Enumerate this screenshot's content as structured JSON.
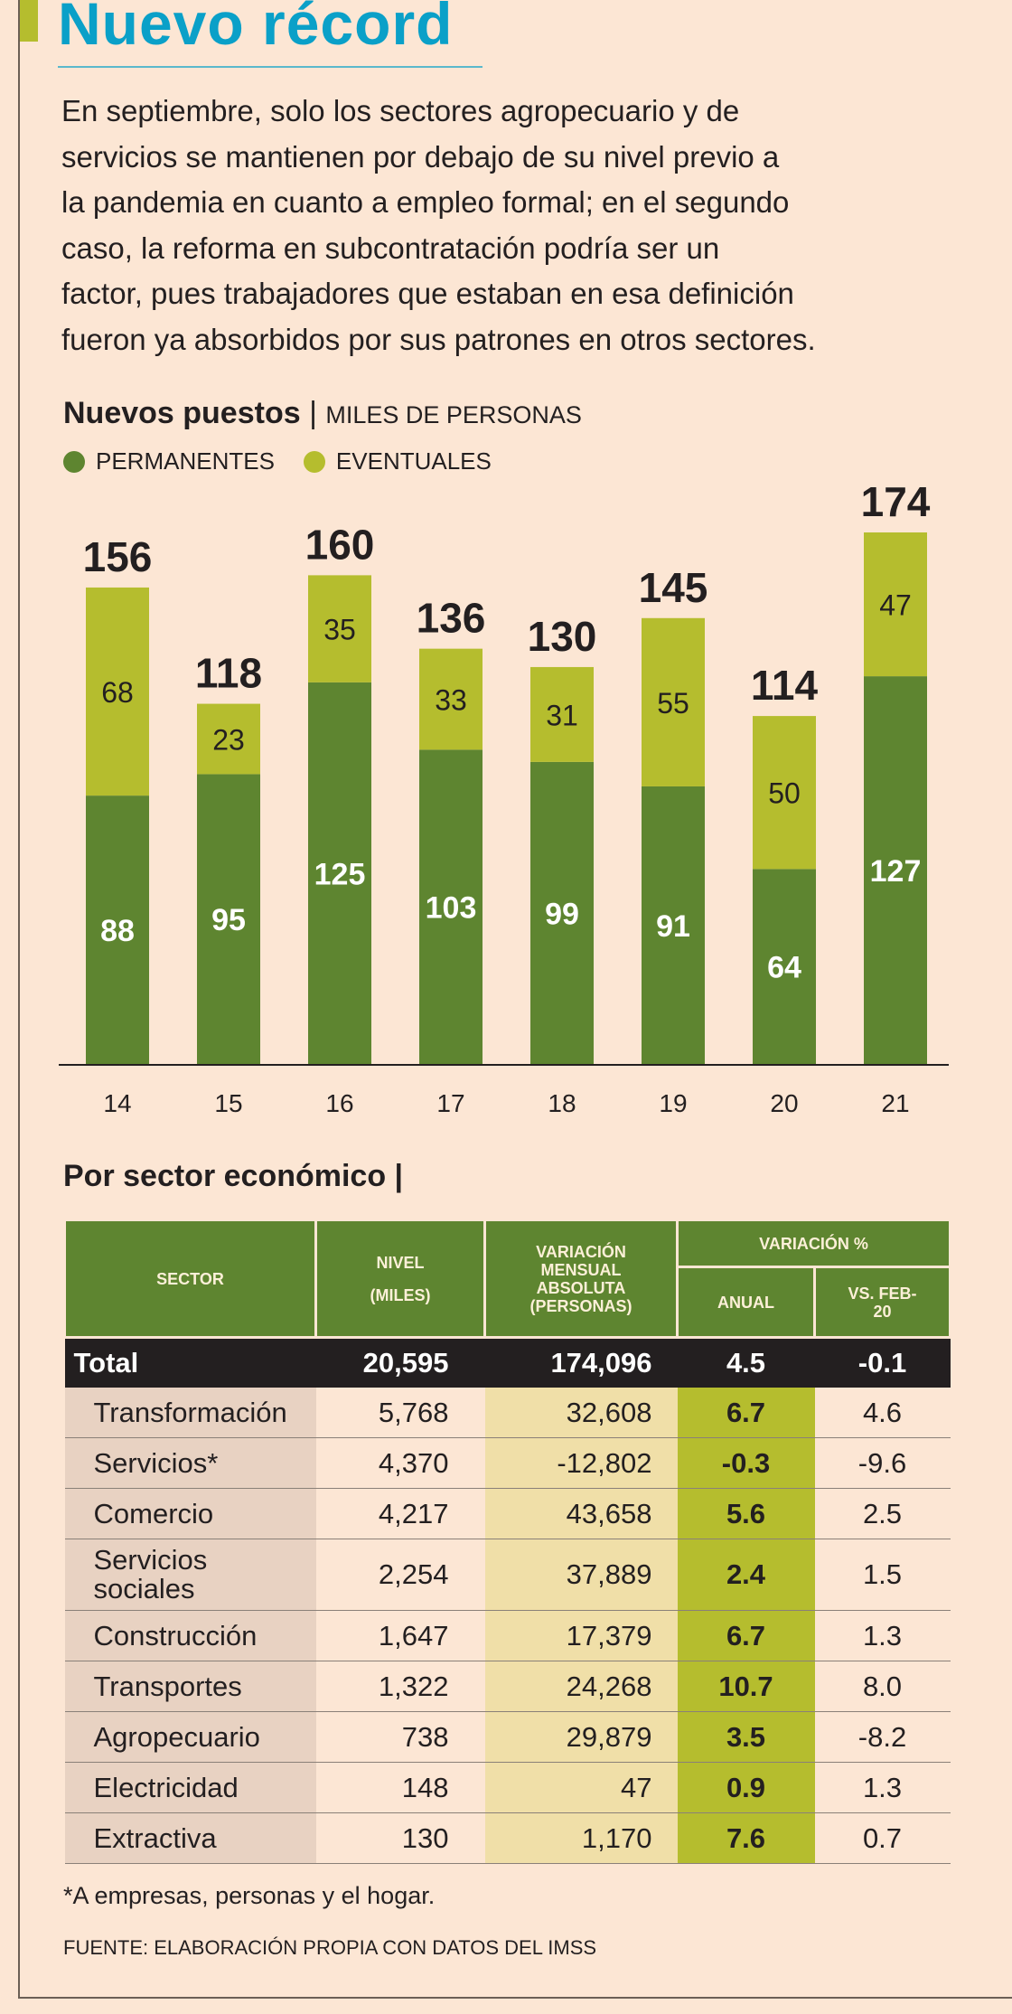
{
  "header": {
    "title": "Nuevo récord"
  },
  "intro_lines": [
    "En septiembre, solo los sectores agropecuario y de",
    "servicios se mantienen por debajo de su nivel previo a",
    "la pandemia en cuanto a empleo formal; en el segundo",
    "caso, la reforma en subcontratación podría ser un",
    "factor, pues trabajadores que estaban en esa definición",
    "fueron ya absorbidos por sus patrones en otros sectores."
  ],
  "chart_data": {
    "type": "bar",
    "stacked": true,
    "title": "Nuevos puestos",
    "unit": "MILES DE PERSONAS",
    "categories": [
      "14",
      "15",
      "16",
      "17",
      "18",
      "19",
      "20",
      "21"
    ],
    "series": [
      {
        "name": "PERMANENTES",
        "color": "#5e8530",
        "values": [
          88,
          95,
          125,
          103,
          99,
          91,
          64,
          127
        ]
      },
      {
        "name": "EVENTUALES",
        "color": "#b5bd2e",
        "values": [
          68,
          23,
          35,
          33,
          31,
          55,
          50,
          47
        ]
      }
    ],
    "totals": [
      156,
      118,
      160,
      136,
      130,
      145,
      114,
      174
    ],
    "ylim": [
      0,
      174
    ],
    "grid": false,
    "legend": "top-left"
  },
  "table": {
    "title": "Por sector económico",
    "headers": {
      "sector": "SECTOR",
      "nivel1": "NIVEL",
      "nivel2": "(MILES)",
      "mensual": "VARIACIÓN MENSUAL ABSOLUTA (PERSONAS)",
      "var": "VARIACIÓN %",
      "anual": "ANUAL",
      "feb": "VS. FEB-20"
    },
    "total": {
      "sector": "Total",
      "nivel": "20,595",
      "mensual": "174,096",
      "anual": "4.5",
      "feb": "-0.1"
    },
    "rows": [
      {
        "sector": "Transformación",
        "nivel": "5,768",
        "mensual": "32,608",
        "anual": "6.7",
        "feb": "4.6"
      },
      {
        "sector": "Servicios*",
        "nivel": "4,370",
        "mensual": "-12,802",
        "anual": "-0.3",
        "feb": "-9.6"
      },
      {
        "sector": "Comercio",
        "nivel": "4,217",
        "mensual": "43,658",
        "anual": "5.6",
        "feb": "2.5"
      },
      {
        "sector": "Servicios sociales",
        "nivel": "2,254",
        "mensual": "37,889",
        "anual": "2.4",
        "feb": "1.5"
      },
      {
        "sector": "Construcción",
        "nivel": "1,647",
        "mensual": "17,379",
        "anual": "6.7",
        "feb": "1.3"
      },
      {
        "sector": "Transportes",
        "nivel": "1,322",
        "mensual": "24,268",
        "anual": "10.7",
        "feb": "8.0"
      },
      {
        "sector": "Agropecuario",
        "nivel": "738",
        "mensual": "29,879",
        "anual": "3.5",
        "feb": "-8.2"
      },
      {
        "sector": "Electricidad",
        "nivel": "148",
        "mensual": "47",
        "anual": "0.9",
        "feb": "1.3"
      },
      {
        "sector": "Extractiva",
        "nivel": "130",
        "mensual": "1,170",
        "anual": "7.6",
        "feb": "0.7"
      }
    ]
  },
  "footnote": "*A empresas, personas y el hogar.",
  "source": "FUENTE: ELABORACIÓN PROPIA CON DATOS DEL IMSS"
}
